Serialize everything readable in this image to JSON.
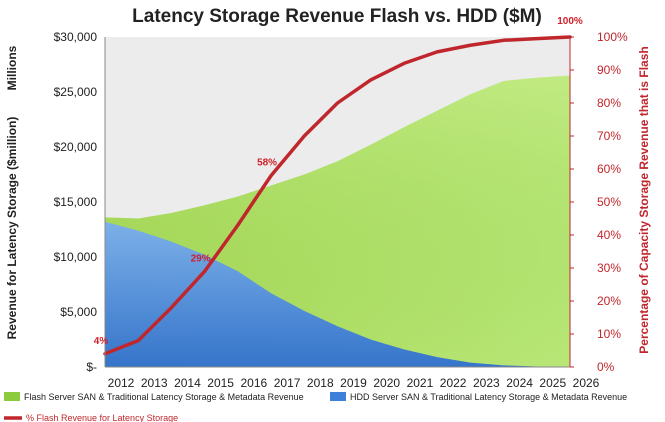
{
  "chart_data": {
    "type": "area",
    "title": "Latency Storage Revenue Flash vs. HDD ($M)",
    "units_label": "Millions",
    "ylabel": "Revenue for Latency Storage ($million)",
    "y2label": "Percentage of Capacity Storage Revenue that is Flash",
    "x": [
      "2012",
      "2013",
      "2014",
      "2015",
      "2016",
      "2017",
      "2018",
      "2019",
      "2020",
      "2021",
      "2022",
      "2023",
      "2024",
      "2025",
      "2026"
    ],
    "ylim": [
      0,
      30000
    ],
    "y_ticks": [
      0,
      5000,
      10000,
      15000,
      20000,
      25000,
      30000
    ],
    "y_tick_labels": [
      "$-",
      "$5,000",
      "$10,000",
      "$15,000",
      "$20,000",
      "$25,000",
      "$30,000"
    ],
    "y2lim": [
      0,
      100
    ],
    "y2_ticks": [
      0,
      10,
      20,
      30,
      40,
      50,
      60,
      70,
      80,
      90,
      100
    ],
    "y2_tick_labels": [
      "0%",
      "10%",
      "20%",
      "30%",
      "40%",
      "50%",
      "60%",
      "70%",
      "80%",
      "90%",
      "100%"
    ],
    "series": [
      {
        "name": "Flash Server SAN & Traditional Latency Storage & Metadata Revenue",
        "axis": "left",
        "kind": "area",
        "color": "#8ccc3c",
        "values": [
          13600,
          13500,
          14000,
          14700,
          15500,
          16500,
          17500,
          18700,
          20200,
          21800,
          23300,
          24800,
          26000,
          26300,
          26500
        ]
      },
      {
        "name": "HDD Server SAN & Traditional Latency Storage & Metadata Revenue",
        "axis": "left",
        "kind": "area",
        "color": "#3d7fd9",
        "values": [
          13200,
          12400,
          11400,
          10200,
          8700,
          6700,
          5100,
          3700,
          2500,
          1600,
          900,
          400,
          150,
          50,
          0
        ]
      },
      {
        "name": "% Flash Revenue for Latency Storage",
        "axis": "right",
        "kind": "line",
        "color": "#c0272d",
        "values": [
          4,
          8,
          18,
          29,
          43,
          58,
          70,
          80,
          87,
          92,
          95.5,
          97.5,
          99,
          99.5,
          100
        ]
      }
    ],
    "annotations": [
      {
        "text": "4%",
        "x": "2012"
      },
      {
        "text": "29%",
        "x": "2015"
      },
      {
        "text": "58%",
        "x": "2017"
      },
      {
        "text": "100%",
        "x": "2026"
      }
    ],
    "legend_position": "bottom",
    "grid": false
  }
}
